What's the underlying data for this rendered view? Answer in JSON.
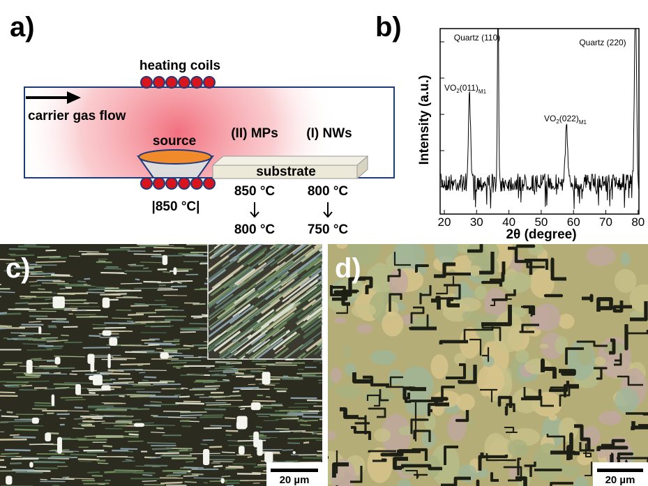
{
  "panels": {
    "a": {
      "label": "a)",
      "heating_coils": "heating coils",
      "carrier_gas_flow": "carrier gas flow",
      "source": "source",
      "mps": "(II) MPs",
      "nws": "(I) NWs",
      "substrate": "substrate",
      "source_temp": "|850 °C|",
      "mps_temp_start": "850 °C",
      "mps_temp_end": "800 °C",
      "nws_temp_start": "800 °C",
      "nws_temp_end": "750 °C"
    },
    "b": {
      "label": "b)",
      "y_label": "Intensity (a.u.)",
      "x_label": "2θ (degree)",
      "x_ticks": [
        "20",
        "30",
        "40",
        "50",
        "60",
        "70",
        "80"
      ],
      "quartz_110": "Quartz (110)",
      "quartz_220": "Quartz (220)",
      "vo2_011": {
        "formula": "VO",
        "sub": "2",
        "plane": "(011)",
        "phase": "M1"
      },
      "vo2_022": {
        "formula": "VO",
        "sub": "2",
        "plane": "(022)",
        "phase": "M1"
      }
    },
    "c": {
      "label": "c)",
      "scale_bar": "20 µm"
    },
    "d": {
      "label": "d)",
      "scale_bar": "20 µm"
    }
  }
}
